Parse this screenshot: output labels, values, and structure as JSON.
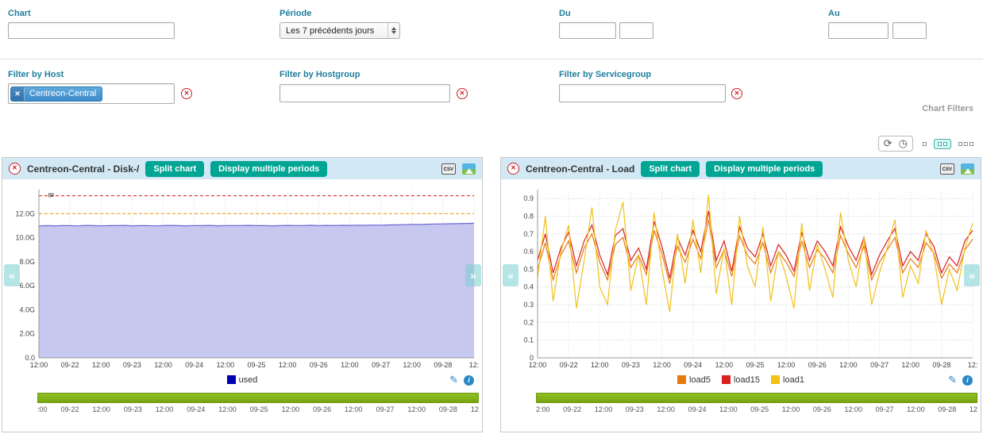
{
  "filters": {
    "row1": {
      "chart_label": "Chart",
      "chart_value": "",
      "periode_label": "Période",
      "periode_value": "Les 7 précédents jours",
      "du_label": "Du",
      "du_date": "",
      "du_time": "",
      "au_label": "Au",
      "au_date": "",
      "au_time": ""
    },
    "row2": {
      "host_label": "Filter by Host",
      "host_tag": "Centreon-Central",
      "hostgroup_label": "Filter by Hostgroup",
      "hostgroup_value": "",
      "servicegroup_label": "Filter by Servicegroup",
      "servicegroup_value": "",
      "panel_caption": "Chart Filters"
    }
  },
  "toolbar": {
    "refresh_icon": "⟳",
    "auto_refresh_icon": "◷"
  },
  "charts": [
    {
      "title": "Centreon-Central - Disk-/",
      "split_button": "Split chart",
      "periods_button": "Display multiple periods",
      "csv_icon_label": "CSV",
      "chart_data": {
        "type": "area",
        "unit": "B",
        "y_max": 14,
        "y_tick_values": [
          0,
          2,
          4,
          6,
          8,
          10,
          12
        ],
        "y_ticks": [
          "0.0",
          "2.0G",
          "4.0G",
          "6.0G",
          "8.0G",
          "10.0G",
          "12.0G"
        ],
        "x_ticks": [
          "12:00",
          "09-22",
          "12:00",
          "09-23",
          "12:00",
          "09-24",
          "12:00",
          "09-25",
          "12:00",
          "09-26",
          "12:00",
          "09-27",
          "12:00",
          "09-28",
          "12:"
        ],
        "overview_ticks": [
          ":00",
          "09-22",
          "12:00",
          "09-23",
          "12:00",
          "09-24",
          "12:00",
          "09-25",
          "12:00",
          "09-26",
          "12:00",
          "09-27",
          "12:00",
          "09-28",
          "12"
        ],
        "thresholds": [
          {
            "name": "warning",
            "value": 12.0,
            "color": "#eda712"
          },
          {
            "name": "critical",
            "value": 13.5,
            "color": "#e23b32"
          }
        ],
        "series": [
          {
            "name": "used",
            "color": "#6868d8",
            "fill": "#c7c8f0",
            "legend_color": "#0000b3",
            "values": [
              10.98,
              11.0,
              10.99,
              11.01,
              11.0,
              10.98,
              11.02,
              11.0,
              10.99,
              11.01,
              11.0,
              11.02,
              10.99,
              11.0,
              11.01,
              10.98,
              11.0,
              11.02,
              11.0,
              10.99,
              11.01,
              11.0,
              11.02,
              10.99,
              11.0,
              11.01,
              11.0,
              11.02,
              11.0,
              11.01,
              10.99,
              11.0,
              11.02,
              11.01,
              11.0,
              11.03,
              11.01,
              11.02,
              11.0,
              11.03,
              11.02,
              11.04,
              11.03,
              11.05,
              11.04,
              11.06,
              11.07,
              11.08,
              11.1,
              11.11,
              11.12,
              11.14,
              11.15,
              11.16,
              11.17,
              11.19,
              11.2
            ]
          }
        ]
      }
    },
    {
      "title": "Centreon-Central - Load",
      "split_button": "Split chart",
      "periods_button": "Display multiple periods",
      "csv_icon_label": "CSV",
      "chart_data": {
        "type": "line",
        "unit": "",
        "y_max": 0.95,
        "y_tick_values": [
          0,
          0.1,
          0.2,
          0.3,
          0.4,
          0.5,
          0.6,
          0.7,
          0.8,
          0.9
        ],
        "y_ticks": [
          "0",
          "0.1",
          "0.2",
          "0.3",
          "0.4",
          "0.5",
          "0.6",
          "0.7",
          "0.8",
          "0.9"
        ],
        "x_ticks": [
          "12:00",
          "09-22",
          "12:00",
          "09-23",
          "12:00",
          "09-24",
          "12:00",
          "09-25",
          "12:00",
          "09-26",
          "12:00",
          "09-27",
          "12:00",
          "09-28",
          "12:"
        ],
        "overview_ticks": [
          "2:00",
          "09-22",
          "12:00",
          "09-23",
          "12:00",
          "09-24",
          "12:00",
          "09-25",
          "12:00",
          "09-26",
          "12:00",
          "09-27",
          "12:00",
          "09-28",
          "12"
        ],
        "thresholds": [],
        "series": [
          {
            "name": "load5",
            "color": "#e87a12",
            "legend_color": "#e87a12",
            "values": [
              0.5,
              0.65,
              0.44,
              0.58,
              0.66,
              0.48,
              0.62,
              0.7,
              0.54,
              0.44,
              0.64,
              0.68,
              0.51,
              0.58,
              0.47,
              0.72,
              0.59,
              0.42,
              0.63,
              0.54,
              0.67,
              0.56,
              0.78,
              0.51,
              0.61,
              0.46,
              0.69,
              0.58,
              0.53,
              0.65,
              0.48,
              0.6,
              0.54,
              0.46,
              0.66,
              0.51,
              0.61,
              0.56,
              0.48,
              0.69,
              0.59,
              0.51,
              0.63,
              0.44,
              0.54,
              0.61,
              0.68,
              0.48,
              0.56,
              0.51,
              0.65,
              0.59,
              0.45,
              0.53,
              0.48,
              0.61,
              0.67
            ]
          },
          {
            "name": "load15",
            "color": "#dc1f1f",
            "legend_color": "#dc1f1f",
            "values": [
              0.55,
              0.7,
              0.48,
              0.62,
              0.71,
              0.52,
              0.66,
              0.75,
              0.58,
              0.47,
              0.69,
              0.73,
              0.55,
              0.62,
              0.5,
              0.77,
              0.63,
              0.45,
              0.68,
              0.58,
              0.72,
              0.6,
              0.83,
              0.55,
              0.66,
              0.49,
              0.74,
              0.62,
              0.57,
              0.7,
              0.52,
              0.64,
              0.58,
              0.49,
              0.71,
              0.55,
              0.66,
              0.6,
              0.52,
              0.74,
              0.63,
              0.55,
              0.68,
              0.47,
              0.58,
              0.66,
              0.73,
              0.52,
              0.6,
              0.55,
              0.7,
              0.63,
              0.48,
              0.57,
              0.52,
              0.66,
              0.72
            ]
          },
          {
            "name": "load1",
            "color": "#f2c118",
            "legend_color": "#f2c118",
            "values": [
              0.45,
              0.8,
              0.32,
              0.6,
              0.75,
              0.28,
              0.55,
              0.85,
              0.4,
              0.3,
              0.72,
              0.88,
              0.38,
              0.58,
              0.3,
              0.82,
              0.5,
              0.26,
              0.7,
              0.42,
              0.78,
              0.48,
              0.92,
              0.36,
              0.62,
              0.3,
              0.8,
              0.52,
              0.4,
              0.74,
              0.32,
              0.6,
              0.46,
              0.28,
              0.76,
              0.38,
              0.64,
              0.5,
              0.34,
              0.82,
              0.55,
              0.4,
              0.68,
              0.3,
              0.48,
              0.62,
              0.78,
              0.34,
              0.52,
              0.42,
              0.72,
              0.58,
              0.3,
              0.5,
              0.38,
              0.62,
              0.76
            ]
          }
        ]
      }
    }
  ]
}
